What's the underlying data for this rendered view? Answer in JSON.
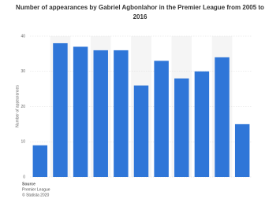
{
  "chart_data": {
    "type": "bar",
    "title": "Number of appearances by Gabriel Agbonlahor in the Premier League from 2005 to 2016",
    "y_label": "Number of appearances",
    "categories": [
      null,
      null,
      null,
      null,
      null,
      null,
      null,
      null,
      null,
      null,
      null
    ],
    "values": [
      9,
      38,
      37,
      36,
      36,
      26,
      33,
      28,
      30,
      34,
      15
    ],
    "color": "#2f76d8",
    "ylim": [
      0,
      40
    ],
    "yticks": [
      0,
      10,
      20,
      30,
      40
    ],
    "grid": true,
    "source_label": "Source",
    "source": "Premier League",
    "copyright": "© Statista 2020"
  }
}
